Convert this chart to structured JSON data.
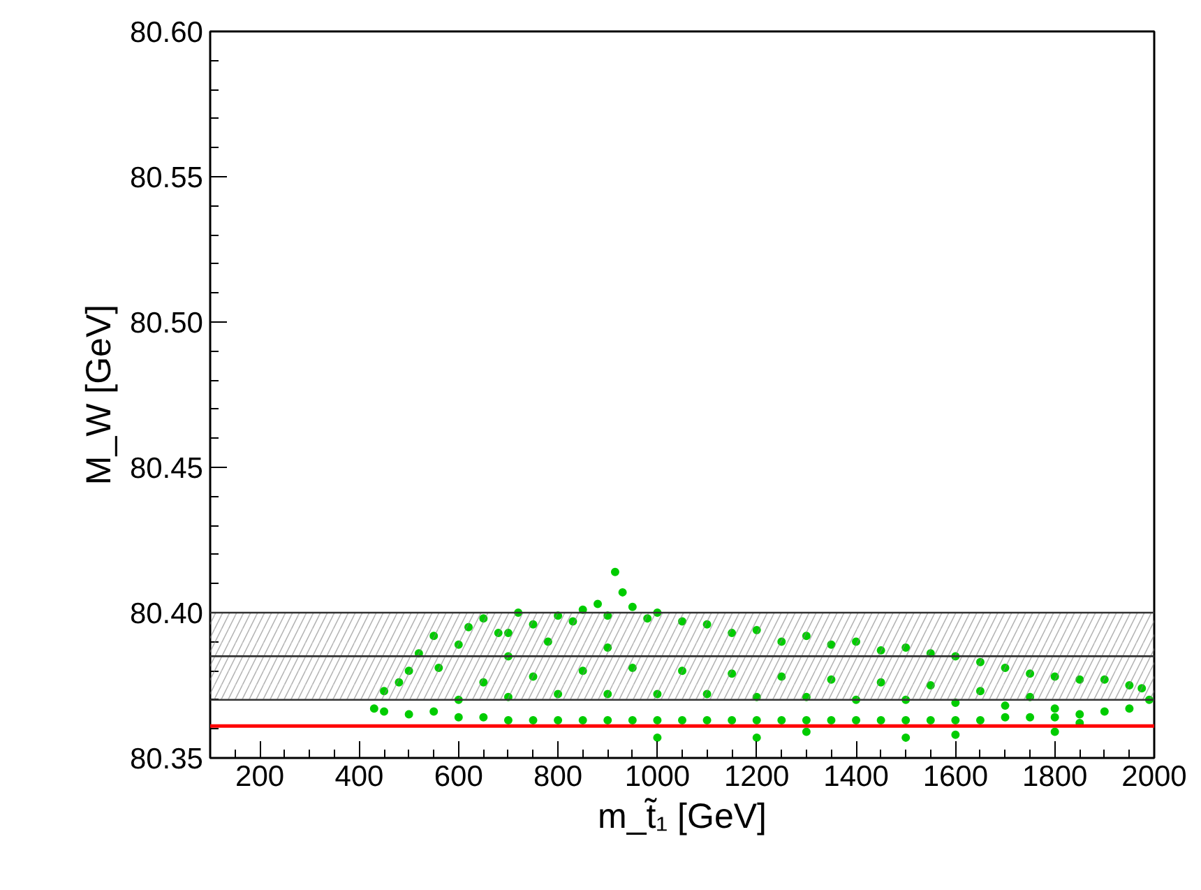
{
  "chart_data": {
    "type": "scatter",
    "xlabel": "m_t̃₁ [GeV]",
    "ylabel": "M_W [GeV]",
    "xlim": [
      100,
      2000
    ],
    "ylim": [
      80.35,
      80.6
    ],
    "xticks": [
      200,
      400,
      600,
      800,
      1000,
      1200,
      1400,
      1600,
      1800,
      2000
    ],
    "yticks": [
      {
        "value": 80.35,
        "label": "80.35"
      },
      {
        "value": 80.4,
        "label": "80.40"
      },
      {
        "value": 80.45,
        "label": "80.45"
      },
      {
        "value": 80.5,
        "label": "80.50"
      },
      {
        "value": 80.55,
        "label": "80.55"
      },
      {
        "value": 80.6,
        "label": "80.60"
      }
    ],
    "grid": false,
    "marker": "circle",
    "bands": [
      {
        "axis": "y",
        "from": 80.37,
        "to": 80.4,
        "color": "#808080"
      }
    ],
    "ref_lines": [
      {
        "axis": "y",
        "value": 80.4,
        "color": "#333333"
      },
      {
        "axis": "y",
        "value": 80.385,
        "color": "#333333"
      },
      {
        "axis": "y",
        "value": 80.37,
        "color": "#333333"
      },
      {
        "axis": "y",
        "value": 80.361,
        "color": "#ff0000"
      }
    ],
    "series": [
      {
        "color": "#00cc00",
        "x": [
          430,
          450,
          480,
          500,
          520,
          550,
          560,
          600,
          620,
          650,
          680,
          700,
          720,
          750,
          780,
          800,
          830,
          850,
          880,
          900,
          915,
          930,
          950,
          980,
          1000,
          1050,
          1100,
          1150,
          1200,
          1250,
          1300,
          1350,
          1400,
          1450,
          1500,
          1550,
          1600,
          1650,
          1700,
          1750,
          1800,
          1850,
          1900,
          1950,
          1975,
          1990,
          450,
          500,
          550,
          600,
          650,
          700,
          750,
          800,
          850,
          900,
          950,
          1000,
          1050,
          1100,
          1150,
          1200,
          1250,
          1300,
          1350,
          1400,
          1450,
          1500,
          1550,
          1600,
          1650,
          1700,
          1750,
          1800,
          1850,
          1900,
          1950,
          600,
          700,
          800,
          900,
          1000,
          1100,
          1200,
          1300,
          1400,
          1500,
          1600,
          1700,
          1800,
          650,
          750,
          850,
          950,
          1050,
          1150,
          1250,
          1350,
          1450,
          1550,
          1650,
          1750,
          700,
          900,
          1000,
          1200,
          1300,
          1500,
          1600,
          1800,
          1850
        ],
        "values": [
          80.367,
          80.373,
          80.376,
          80.38,
          80.386,
          80.392,
          80.381,
          80.389,
          80.395,
          80.398,
          80.393,
          80.393,
          80.4,
          80.396,
          80.39,
          80.399,
          80.397,
          80.401,
          80.403,
          80.399,
          80.414,
          80.407,
          80.402,
          80.398,
          80.4,
          80.397,
          80.396,
          80.393,
          80.394,
          80.39,
          80.392,
          80.389,
          80.39,
          80.387,
          80.388,
          80.386,
          80.385,
          80.383,
          80.381,
          80.379,
          80.378,
          80.377,
          80.377,
          80.375,
          80.374,
          80.37,
          80.366,
          80.365,
          80.366,
          80.364,
          80.364,
          80.363,
          80.363,
          80.363,
          80.363,
          80.363,
          80.363,
          80.363,
          80.363,
          80.363,
          80.363,
          80.363,
          80.363,
          80.363,
          80.363,
          80.363,
          80.363,
          80.363,
          80.363,
          80.363,
          80.363,
          80.364,
          80.364,
          80.364,
          80.365,
          80.366,
          80.367,
          80.37,
          80.371,
          80.372,
          80.372,
          80.372,
          80.372,
          80.371,
          80.371,
          80.37,
          80.37,
          80.369,
          80.368,
          80.367,
          80.376,
          80.378,
          80.38,
          80.381,
          80.38,
          80.379,
          80.378,
          80.377,
          80.376,
          80.375,
          80.373,
          80.371,
          80.385,
          80.388,
          80.357,
          80.357,
          80.359,
          80.357,
          80.358,
          80.359,
          80.362
        ]
      }
    ]
  }
}
